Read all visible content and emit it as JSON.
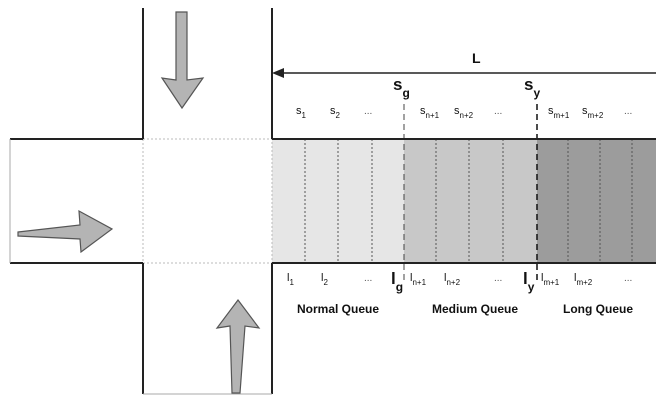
{
  "length_label": "L",
  "thresholds": {
    "sg": {
      "main": "s",
      "sub": "g"
    },
    "sy": {
      "main": "s",
      "sub": "y"
    },
    "lg": {
      "main": "l",
      "sub": "g"
    },
    "ly": {
      "main": "l",
      "sub": "y"
    }
  },
  "top_labels": [
    {
      "main": "s",
      "sub": "1"
    },
    {
      "main": "s",
      "sub": "2"
    },
    {
      "main": "...",
      "sub": ""
    },
    {
      "main": "s",
      "sub": "n+1"
    },
    {
      "main": "s",
      "sub": "n+2"
    },
    {
      "main": "...",
      "sub": ""
    },
    {
      "main": "s",
      "sub": "m+1"
    },
    {
      "main": "s",
      "sub": "m+2"
    },
    {
      "main": "...",
      "sub": ""
    }
  ],
  "bottom_labels": [
    {
      "main": "l",
      "sub": "1"
    },
    {
      "main": "l",
      "sub": "2"
    },
    {
      "main": "...",
      "sub": ""
    },
    {
      "main": "l",
      "sub": "n+1"
    },
    {
      "main": "l",
      "sub": "n+2"
    },
    {
      "main": "...",
      "sub": ""
    },
    {
      "main": "l",
      "sub": "m+1"
    },
    {
      "main": "l",
      "sub": "m+2"
    },
    {
      "main": "...",
      "sub": ""
    }
  ],
  "queues": {
    "normal": "Normal Queue",
    "medium": "Medium Queue",
    "long": "Long Queue"
  },
  "colors": {
    "normal_fill": "#e6e6e6",
    "medium_fill": "#c8c8c8",
    "long_fill": "#9c9c9c",
    "road_line": "#222222",
    "arrow_fill": "#b4b4b4",
    "arrow_stroke": "#555555"
  }
}
